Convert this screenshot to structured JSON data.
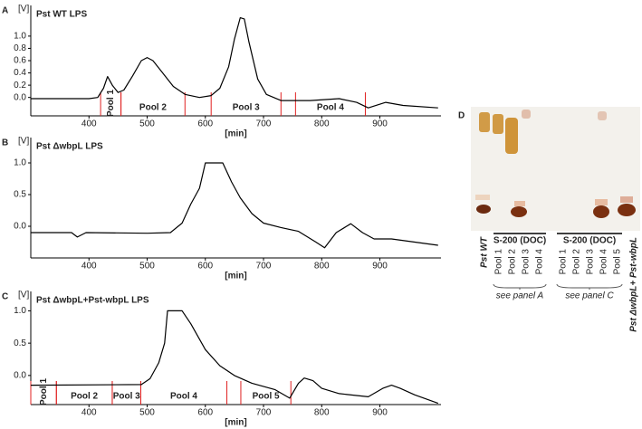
{
  "chart_data": [
    {
      "type": "line",
      "panel": "A",
      "title": "Pst WT LPS",
      "ylabel": "[V]",
      "xlabel": "[min]",
      "color": "#000000",
      "pool_color": "#e02020",
      "xlim": [
        300,
        1005
      ],
      "xticks": [
        400,
        500,
        600,
        700,
        800,
        900
      ],
      "ylim": [
        -0.3,
        1.5
      ],
      "yticks": [
        {
          "value": 0,
          "label": "0.0"
        },
        0.2,
        0.4,
        0.6,
        0.8,
        {
          "value": 1,
          "label": "1.0"
        }
      ],
      "x": [
        300,
        400,
        415,
        425,
        432,
        440,
        450,
        460,
        475,
        490,
        500,
        510,
        525,
        545,
        565,
        590,
        610,
        625,
        640,
        650,
        660,
        667,
        675,
        690,
        705,
        730,
        780,
        830,
        860,
        880,
        910,
        940,
        1000
      ],
      "values": [
        -0.02,
        -0.02,
        0.0,
        0.15,
        0.34,
        0.2,
        0.08,
        0.12,
        0.35,
        0.6,
        0.65,
        0.6,
        0.42,
        0.18,
        0.05,
        0.0,
        0.03,
        0.15,
        0.5,
        0.95,
        1.3,
        1.28,
        0.9,
        0.3,
        0.05,
        -0.05,
        -0.05,
        -0.02,
        -0.08,
        -0.17,
        -0.08,
        -0.13,
        -0.17
      ],
      "pools": [
        {
          "label": "Pool 1",
          "start": 420,
          "end": 455
        },
        {
          "label": "Pool 2",
          "start": 455,
          "end": 565
        },
        {
          "label": "Pool 3",
          "start": 610,
          "end": 730
        },
        {
          "label": "Pool 4",
          "start": 755,
          "end": 875
        }
      ]
    },
    {
      "type": "line",
      "panel": "B",
      "title": "Pst ΔwbpL LPS",
      "ylabel": "[V]",
      "xlabel": "[min]",
      "color": "#000000",
      "xlim": [
        300,
        1005
      ],
      "xticks": [
        400,
        500,
        600,
        700,
        800,
        900
      ],
      "ylim": [
        -0.5,
        1.4
      ],
      "yticks": [
        {
          "value": 0,
          "label": "0.0"
        },
        0.5,
        {
          "value": 1,
          "label": "1.0"
        }
      ],
      "x": [
        300,
        370,
        380,
        395,
        500,
        540,
        560,
        575,
        590,
        600,
        630,
        645,
        660,
        680,
        700,
        730,
        760,
        790,
        805,
        825,
        850,
        870,
        890,
        920,
        960,
        1000
      ],
      "values": [
        -0.1,
        -0.1,
        -0.17,
        -0.1,
        -0.11,
        -0.1,
        0.05,
        0.35,
        0.6,
        1.0,
        1.0,
        0.7,
        0.45,
        0.2,
        0.05,
        -0.02,
        -0.08,
        -0.25,
        -0.34,
        -0.1,
        0.04,
        -0.1,
        -0.2,
        -0.2,
        -0.25,
        -0.3
      ]
    },
    {
      "type": "line",
      "panel": "C",
      "title": "Pst ΔwbpL+Pst-wbpL LPS",
      "ylabel": "[V]",
      "xlabel": "[min]",
      "color": "#000000",
      "pool_color": "#e02020",
      "xlim": [
        300,
        1005
      ],
      "xticks": [
        400,
        500,
        600,
        700,
        800,
        900
      ],
      "ylim": [
        -0.45,
        1.3
      ],
      "yticks": [
        {
          "value": 0,
          "label": "0.0"
        },
        0.5,
        {
          "value": 1,
          "label": "1.0"
        }
      ],
      "x": [
        300,
        490,
        505,
        520,
        530,
        535,
        560,
        575,
        600,
        625,
        650,
        680,
        720,
        745,
        760,
        770,
        785,
        800,
        830,
        880,
        905,
        920,
        935,
        960,
        1000
      ],
      "values": [
        -0.15,
        -0.14,
        -0.05,
        0.2,
        0.5,
        1.0,
        1.0,
        0.8,
        0.4,
        0.15,
        0.0,
        -0.12,
        -0.22,
        -0.35,
        -0.12,
        -0.04,
        -0.08,
        -0.2,
        -0.28,
        -0.33,
        -0.2,
        -0.15,
        -0.2,
        -0.3,
        -0.43
      ],
      "pools": [
        {
          "label": "Pool 1",
          "start": 300,
          "end": 344
        },
        {
          "label": "Pool 2",
          "start": 344,
          "end": 440
        },
        {
          "label": "Pool 3",
          "start": 440,
          "end": 489
        },
        {
          "label": "Pool 4",
          "start": 489,
          "end": 637
        },
        {
          "label": "Pool 5",
          "start": 661,
          "end": 747
        }
      ]
    }
  ],
  "gel": {
    "panel": "D",
    "wt": "Pst WT",
    "group_a": {
      "header": "S-200 (DOC)",
      "lanes": [
        "Pool 1",
        "Pool 2",
        "Pool 3",
        "Pool 4"
      ],
      "note": "see panel A"
    },
    "group_c": {
      "header": "S-200 (DOC)",
      "lanes": [
        "Pool 1",
        "Pool 2",
        "Pool 3",
        "Pool 4",
        "Pool 5"
      ],
      "note": "see panel C"
    },
    "complemented": "Pst ΔwbpL+ Pst-wbpL"
  }
}
